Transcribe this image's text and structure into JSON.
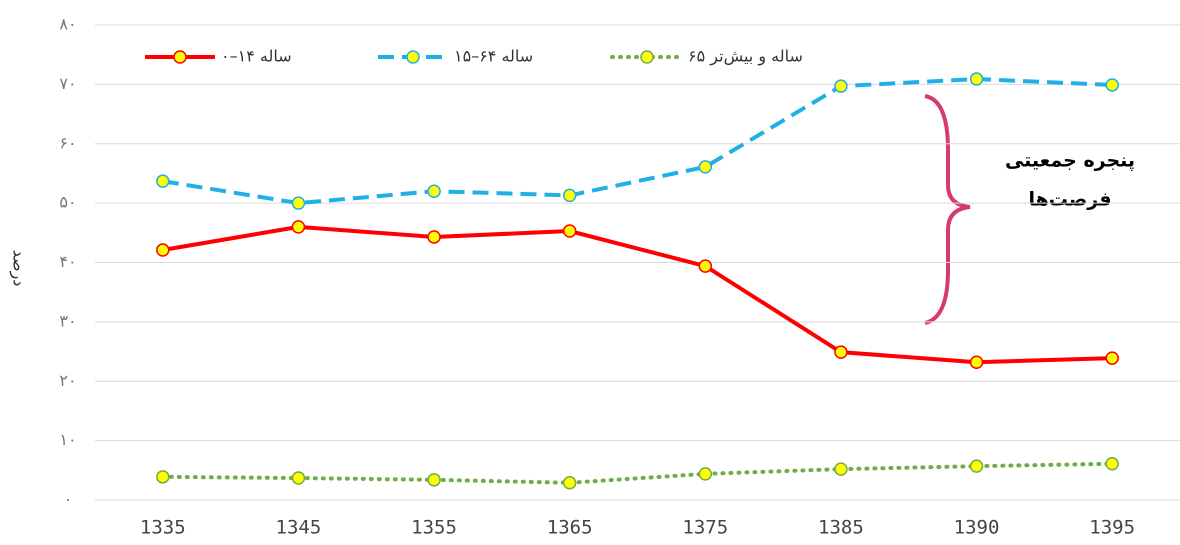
{
  "chart_data": {
    "type": "line",
    "y_label": "درصد",
    "categories": [
      "1335",
      "1345",
      "1355",
      "1365",
      "1375",
      "1385",
      "1390",
      "1395"
    ],
    "series": [
      {
        "name": "۰–۱۴ ساله",
        "color": "#ff0000",
        "values": [
          42.1,
          46.0,
          44.3,
          45.3,
          39.4,
          24.9,
          23.2,
          23.9
        ]
      },
      {
        "name": "۱۵–۶۴ ساله",
        "color": "#1fb0e6",
        "values": [
          53.7,
          50.0,
          52.0,
          51.3,
          56.1,
          69.7,
          70.9,
          69.9
        ]
      },
      {
        "name": "۶۵ ساله و بیش‌تر",
        "color": "#70ad47",
        "values": [
          3.9,
          3.7,
          3.4,
          2.9,
          4.4,
          5.2,
          5.7,
          6.1
        ]
      }
    ],
    "ylim": [
      0,
      80
    ],
    "yticks": [
      {
        "value": 0,
        "label": "۰"
      },
      {
        "value": 10,
        "label": "۱۰"
      },
      {
        "value": 20,
        "label": "۲۰"
      },
      {
        "value": 30,
        "label": "۳۰"
      },
      {
        "value": 40,
        "label": "۴۰"
      },
      {
        "value": 50,
        "label": "۵۰"
      },
      {
        "value": 60,
        "label": "۶۰"
      },
      {
        "value": 70,
        "label": "۷۰"
      },
      {
        "value": 80,
        "label": "۸۰"
      }
    ],
    "grid": true,
    "annotation": [
      "پنجره جمعیتی",
      "فرصت‌ها"
    ]
  }
}
